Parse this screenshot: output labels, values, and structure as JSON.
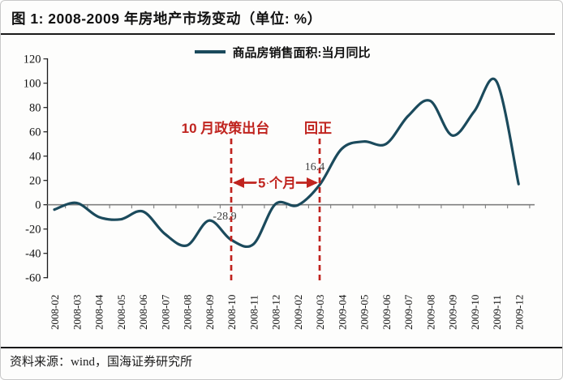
{
  "title": "图 1: 2008-2009 年房地产市场变动（单位: %）",
  "source": "资料来源：wind，国海证券研究所",
  "colors": {
    "line": "#1b4a5c",
    "annotation_red": "#c0241f",
    "axis": "#1a1a1a",
    "zero_axis": "#7f7f7f",
    "point_label": "#3d3d3d",
    "tick_label": "#111111",
    "background": "#fdfdfc",
    "frame_border": "#c9c9c9"
  },
  "chart_data": {
    "type": "line",
    "title": "图 1: 2008-2009 年房地产市场变动（单位: %）",
    "categories": [
      "2008-02",
      "2008-03",
      "2008-04",
      "2008-05",
      "2008-06",
      "2008-07",
      "2008-08",
      "2008-09",
      "2008-10",
      "2008-11",
      "2008-12",
      "2009-02",
      "2009-03",
      "2009-04",
      "2009-05",
      "2009-06",
      "2009-07",
      "2009-08",
      "2009-09",
      "2009-10",
      "2009-11",
      "2009-12"
    ],
    "series": [
      {
        "name": "商品房销售面积:当月同比",
        "values": [
          -4,
          1.5,
          -10,
          -12,
          -5.5,
          -24,
          -33.5,
          -13,
          -28.9,
          -32.5,
          0.5,
          -0.5,
          16.4,
          46,
          52,
          50,
          73,
          85.5,
          57,
          77,
          101.5,
          17
        ]
      }
    ],
    "xlabel": "",
    "ylabel": "",
    "ylim": [
      -60,
      120
    ],
    "yticks": [
      -60,
      -40,
      -20,
      0,
      20,
      40,
      60,
      80,
      100,
      120
    ],
    "grid": false,
    "legend_position": "top-center",
    "annotations": {
      "policy": {
        "label": "10 月政策出台",
        "category": "2008-10"
      },
      "turn_positive": {
        "label": "回正",
        "category": "2009-03"
      },
      "span": {
        "label": "5 个月",
        "from_category": "2008-10",
        "to_category": "2009-03"
      },
      "point_labels": [
        {
          "category": "2008-10",
          "text": "-28.9"
        },
        {
          "category": "2009-03",
          "text": "16.4"
        }
      ]
    }
  }
}
